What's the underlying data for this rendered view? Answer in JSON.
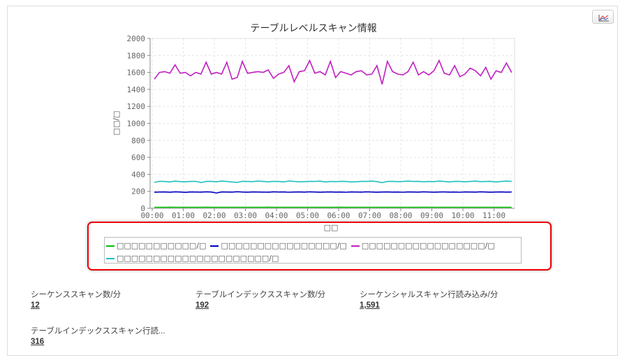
{
  "chart_data": {
    "type": "line",
    "title": "テーブルレベルスキャン情報",
    "xlabel": "□□",
    "ylabel": "□□/□",
    "ylim": [
      0,
      2000
    ],
    "yticks": [
      "0",
      "200",
      "400",
      "600",
      "800",
      "1000",
      "1200",
      "1400",
      "1600",
      "1800",
      "2000"
    ],
    "xticks": [
      "00:00",
      "01:00",
      "02:00",
      "03:00",
      "04:00",
      "05:00",
      "06:00",
      "07:00",
      "08:00",
      "09:00",
      "10:00",
      "11:00"
    ],
    "x_interval_minutes": 10,
    "grid": true,
    "legend_placement": "bottom",
    "series": [
      {
        "name": "□□□□□□□□□□□/□",
        "color": "#00c000",
        "values": [
          12,
          12,
          12,
          13,
          12,
          12,
          12,
          12,
          12,
          12,
          13,
          12,
          12,
          12,
          12,
          12,
          12,
          12,
          12,
          12,
          12,
          12,
          13,
          12,
          12,
          12,
          12,
          12,
          12,
          12,
          12,
          12,
          12,
          12,
          12,
          12,
          13,
          12,
          12,
          12,
          12,
          12,
          12,
          12,
          12,
          12,
          12,
          12,
          12,
          12,
          12,
          12,
          13,
          12,
          12,
          12,
          12,
          12,
          12,
          12,
          12,
          12,
          12,
          12,
          12,
          12,
          12,
          12,
          12,
          12
        ]
      },
      {
        "name": "□□□□□□□□□□□□□□□□/□",
        "color": "#0000c0",
        "values": [
          190,
          192,
          193,
          190,
          194,
          192,
          188,
          193,
          192,
          191,
          194,
          192,
          180,
          193,
          192,
          191,
          195,
          192,
          190,
          193,
          192,
          191,
          190,
          194,
          192,
          193,
          189,
          192,
          193,
          191,
          194,
          192,
          190,
          192,
          193,
          191,
          192,
          189,
          193,
          192,
          191,
          194,
          192,
          190,
          192,
          193,
          191,
          192,
          189,
          193,
          192,
          191,
          194,
          192,
          190,
          192,
          193,
          191,
          192,
          189,
          193,
          192,
          191,
          194,
          192,
          190,
          192,
          193,
          191,
          192
        ]
      },
      {
        "name": "□□□□□□□□□□□□□□□□□/□",
        "color": "#c020c0",
        "values": [
          1520,
          1600,
          1610,
          1590,
          1690,
          1590,
          1600,
          1560,
          1600,
          1580,
          1720,
          1580,
          1600,
          1580,
          1720,
          1520,
          1540,
          1730,
          1590,
          1600,
          1610,
          1600,
          1630,
          1530,
          1580,
          1600,
          1680,
          1490,
          1610,
          1620,
          1740,
          1590,
          1610,
          1570,
          1730,
          1540,
          1610,
          1590,
          1570,
          1610,
          1620,
          1570,
          1580,
          1680,
          1460,
          1730,
          1610,
          1580,
          1570,
          1610,
          1720,
          1570,
          1610,
          1570,
          1620,
          1740,
          1590,
          1570,
          1680,
          1550,
          1580,
          1650,
          1620,
          1560,
          1660,
          1520,
          1620,
          1600,
          1710,
          1600
        ]
      },
      {
        "name": "□□□□□□□□□□□□□□□□□□□□□/□",
        "color": "#20c0c0",
        "values": [
          305,
          318,
          316,
          310,
          320,
          314,
          312,
          316,
          318,
          303,
          316,
          318,
          312,
          320,
          316,
          310,
          305,
          318,
          316,
          314,
          320,
          316,
          312,
          318,
          316,
          310,
          322,
          316,
          312,
          314,
          318,
          316,
          320,
          310,
          316,
          314,
          318,
          316,
          310,
          312,
          318,
          316,
          320,
          314,
          302,
          316,
          318,
          314,
          316,
          320,
          316,
          318,
          312,
          316,
          314,
          320,
          316,
          310,
          318,
          316,
          312,
          316,
          320,
          314,
          316,
          318,
          310,
          316,
          320,
          318
        ]
      }
    ]
  },
  "stats": [
    {
      "label": "シーケンススキャン数/分",
      "value": "12"
    },
    {
      "label": "テーブルインデックススキャン数/分",
      "value": "192"
    },
    {
      "label": "シーケンシャルスキャン行読み込み/分",
      "value": "1,591"
    },
    {
      "label": "テーブルインデックススキャン行読...",
      "value": "316"
    }
  ]
}
